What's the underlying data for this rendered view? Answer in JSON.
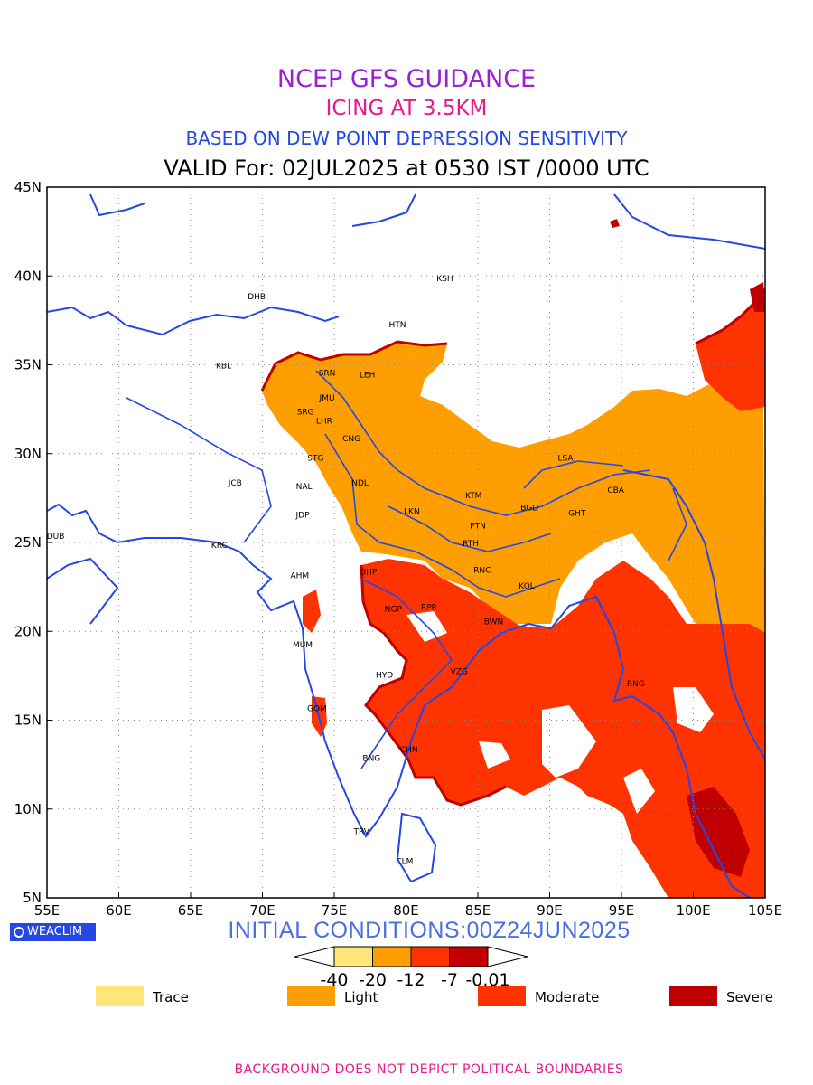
{
  "titles": {
    "line1": "NCEP GFS GUIDANCE",
    "line2": "ICING AT 3.5KM",
    "line3": "BASED ON DEW POINT DEPRESSION SENSITIVITY",
    "line4": "VALID For: 02JUL2025 at 0530 IST /0000 UTC"
  },
  "axes": {
    "lon_labels": [
      "55E",
      "60E",
      "65E",
      "70E",
      "75E",
      "80E",
      "85E",
      "90E",
      "95E",
      "100E",
      "105E"
    ],
    "lat_labels": [
      "5N",
      "10N",
      "15N",
      "20N",
      "25N",
      "30N",
      "35N",
      "40N",
      "45N"
    ],
    "lon_range": [
      55,
      105
    ],
    "lat_range": [
      5,
      45
    ]
  },
  "stations": [
    {
      "code": "KSH",
      "lon": 82.7,
      "lat": 39.7
    },
    {
      "code": "DHB",
      "lon": 69.6,
      "lat": 38.7
    },
    {
      "code": "HTN",
      "lon": 79.4,
      "lat": 37.1
    },
    {
      "code": "KBL",
      "lon": 67.3,
      "lat": 34.8
    },
    {
      "code": "SRN",
      "lon": 74.5,
      "lat": 34.4
    },
    {
      "code": "LEH",
      "lon": 77.3,
      "lat": 34.3
    },
    {
      "code": "JMU",
      "lon": 74.5,
      "lat": 33.0
    },
    {
      "code": "SRG",
      "lon": 73.0,
      "lat": 32.2
    },
    {
      "code": "LHR",
      "lon": 74.3,
      "lat": 31.7
    },
    {
      "code": "CNG",
      "lon": 76.2,
      "lat": 30.7
    },
    {
      "code": "LSA",
      "lon": 91.1,
      "lat": 29.6
    },
    {
      "code": "STG",
      "lon": 73.7,
      "lat": 29.6
    },
    {
      "code": "JCB",
      "lon": 68.1,
      "lat": 28.2
    },
    {
      "code": "NDL",
      "lon": 76.8,
      "lat": 28.2
    },
    {
      "code": "NAL",
      "lon": 72.9,
      "lat": 28.0
    },
    {
      "code": "KTM",
      "lon": 84.7,
      "lat": 27.5
    },
    {
      "code": "CBA",
      "lon": 94.6,
      "lat": 27.8
    },
    {
      "code": "BGD",
      "lon": 88.6,
      "lat": 26.8
    },
    {
      "code": "GHT",
      "lon": 91.9,
      "lat": 26.5
    },
    {
      "code": "LKN",
      "lon": 80.4,
      "lat": 26.6
    },
    {
      "code": "JDP",
      "lon": 72.8,
      "lat": 26.4
    },
    {
      "code": "PTN",
      "lon": 85.0,
      "lat": 25.8
    },
    {
      "code": "DUB",
      "lon": 55.6,
      "lat": 25.2
    },
    {
      "code": "RTH",
      "lon": 84.5,
      "lat": 24.8
    },
    {
      "code": "KRC",
      "lon": 67.0,
      "lat": 24.7
    },
    {
      "code": "BHP",
      "lon": 77.4,
      "lat": 23.2
    },
    {
      "code": "AHM",
      "lon": 72.6,
      "lat": 23.0
    },
    {
      "code": "RNC",
      "lon": 85.3,
      "lat": 23.3
    },
    {
      "code": "KOL",
      "lon": 88.4,
      "lat": 22.4
    },
    {
      "code": "NGP",
      "lon": 79.1,
      "lat": 21.1
    },
    {
      "code": "RPR",
      "lon": 81.6,
      "lat": 21.2
    },
    {
      "code": "BWN",
      "lon": 86.1,
      "lat": 20.4
    },
    {
      "code": "MUM",
      "lon": 72.8,
      "lat": 19.1
    },
    {
      "code": "HYD",
      "lon": 78.5,
      "lat": 17.4
    },
    {
      "code": "VZG",
      "lon": 83.7,
      "lat": 17.6
    },
    {
      "code": "RNG",
      "lon": 96.0,
      "lat": 16.9
    },
    {
      "code": "GOM",
      "lon": 73.8,
      "lat": 15.5
    },
    {
      "code": "CHN",
      "lon": 80.2,
      "lat": 13.2
    },
    {
      "code": "BNG",
      "lon": 77.6,
      "lat": 12.7
    },
    {
      "code": "TRV",
      "lon": 76.9,
      "lat": 8.6
    },
    {
      "code": "CLM",
      "lon": 79.9,
      "lat": 6.9
    }
  ],
  "colorbar": {
    "colors": [
      "#ffe57a",
      "#ff9e00",
      "#ff3300",
      "#c00000"
    ],
    "labels": [
      "-40",
      "-20",
      "-12",
      "-7",
      "-0.01"
    ]
  },
  "legend": [
    {
      "label": "Trace",
      "color": "#ffe57a"
    },
    {
      "label": "Light",
      "color": "#ff9e00"
    },
    {
      "label": "Moderate",
      "color": "#ff3300"
    },
    {
      "label": "Severe",
      "color": "#c00000"
    }
  ],
  "logo_text": "WEACLIM",
  "initial_conditions": "INITIAL CONDITIONS:00Z24JUN2025",
  "footer": "BACKGROUND DOES NOT DEPICT POLITICAL BOUNDARIES",
  "colors": {
    "coast": "#2447e6",
    "grid": "#888888"
  }
}
